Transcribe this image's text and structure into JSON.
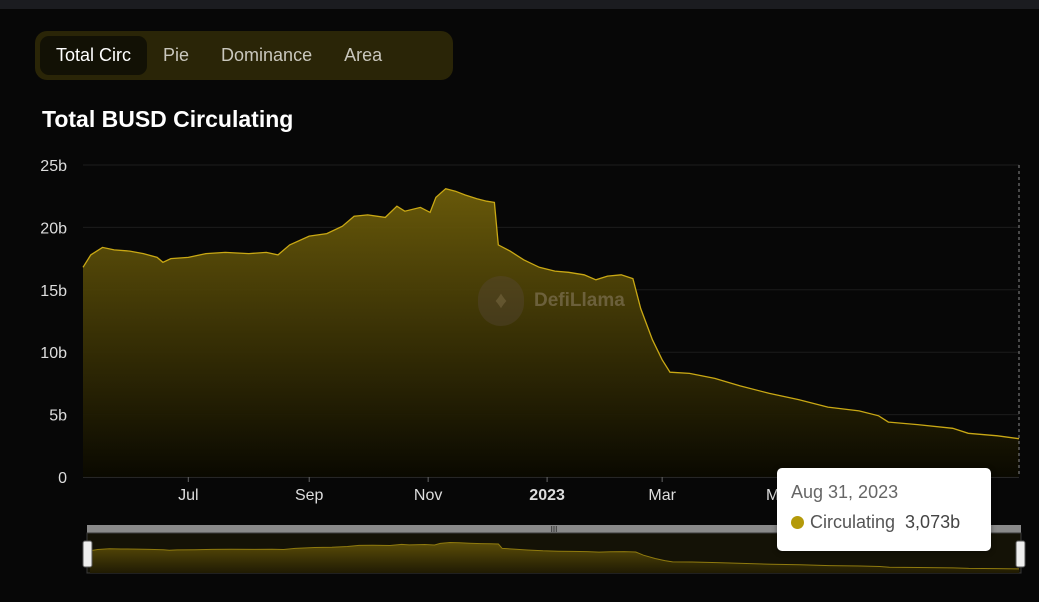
{
  "tabs": [
    {
      "label": "Total Circ",
      "active": true
    },
    {
      "label": "Pie",
      "active": false
    },
    {
      "label": "Dominance",
      "active": false
    },
    {
      "label": "Area",
      "active": false
    }
  ],
  "watermark": {
    "text": "DefiLlama"
  },
  "tooltip": {
    "date": "Aug 31, 2023",
    "series": "Circulating",
    "value": "3,073b"
  },
  "colors": {
    "line": "#c9a814",
    "fill_top": "#6d5d0a",
    "tooltip_dot": "#b49a0a"
  },
  "chart_data": {
    "type": "area",
    "title": "Total BUSD Circulating",
    "ylabel": "",
    "xlabel": "",
    "ylim": [
      0,
      25
    ],
    "yticks": [
      "0",
      "5b",
      "10b",
      "15b",
      "20b",
      "25b"
    ],
    "xticks": [
      {
        "label": "Jul",
        "date": "2022-07-01"
      },
      {
        "label": "Sep",
        "date": "2022-09-01"
      },
      {
        "label": "Nov",
        "date": "2022-11-01"
      },
      {
        "label": "2023",
        "date": "2023-01-01",
        "bold": true
      },
      {
        "label": "Mar",
        "date": "2023-03-01"
      },
      {
        "label": "May",
        "date": "2023-05-01"
      }
    ],
    "grid": true,
    "series": [
      {
        "name": "Circulating",
        "points": [
          [
            "2022-05-08",
            16.8
          ],
          [
            "2022-05-12",
            17.8
          ],
          [
            "2022-05-18",
            18.4
          ],
          [
            "2022-05-24",
            18.2
          ],
          [
            "2022-06-01",
            18.1
          ],
          [
            "2022-06-08",
            17.9
          ],
          [
            "2022-06-15",
            17.6
          ],
          [
            "2022-06-18",
            17.2
          ],
          [
            "2022-06-22",
            17.5
          ],
          [
            "2022-07-01",
            17.6
          ],
          [
            "2022-07-10",
            17.9
          ],
          [
            "2022-07-20",
            18.0
          ],
          [
            "2022-08-01",
            17.9
          ],
          [
            "2022-08-10",
            18.0
          ],
          [
            "2022-08-16",
            17.8
          ],
          [
            "2022-08-22",
            18.6
          ],
          [
            "2022-09-01",
            19.3
          ],
          [
            "2022-09-10",
            19.5
          ],
          [
            "2022-09-18",
            20.1
          ],
          [
            "2022-09-24",
            20.9
          ],
          [
            "2022-10-01",
            21.0
          ],
          [
            "2022-10-10",
            20.8
          ],
          [
            "2022-10-16",
            21.7
          ],
          [
            "2022-10-20",
            21.3
          ],
          [
            "2022-10-28",
            21.6
          ],
          [
            "2022-11-02",
            21.2
          ],
          [
            "2022-11-05",
            22.4
          ],
          [
            "2022-11-10",
            23.1
          ],
          [
            "2022-11-15",
            22.9
          ],
          [
            "2022-11-20",
            22.6
          ],
          [
            "2022-11-26",
            22.3
          ],
          [
            "2022-12-01",
            22.1
          ],
          [
            "2022-12-05",
            22.0
          ],
          [
            "2022-12-07",
            18.6
          ],
          [
            "2022-12-13",
            18.1
          ],
          [
            "2022-12-20",
            17.4
          ],
          [
            "2022-12-28",
            16.8
          ],
          [
            "2023-01-05",
            16.5
          ],
          [
            "2023-01-12",
            16.4
          ],
          [
            "2023-01-20",
            16.2
          ],
          [
            "2023-01-26",
            15.8
          ],
          [
            "2023-02-01",
            16.1
          ],
          [
            "2023-02-08",
            16.2
          ],
          [
            "2023-02-14",
            15.9
          ],
          [
            "2023-02-18",
            13.5
          ],
          [
            "2023-02-24",
            11.0
          ],
          [
            "2023-03-01",
            9.4
          ],
          [
            "2023-03-05",
            8.4
          ],
          [
            "2023-03-15",
            8.3
          ],
          [
            "2023-03-28",
            7.9
          ],
          [
            "2023-04-10",
            7.3
          ],
          [
            "2023-04-25",
            6.7
          ],
          [
            "2023-05-10",
            6.2
          ],
          [
            "2023-05-25",
            5.6
          ],
          [
            "2023-06-10",
            5.3
          ],
          [
            "2023-06-20",
            4.9
          ],
          [
            "2023-06-25",
            4.4
          ],
          [
            "2023-07-10",
            4.2
          ],
          [
            "2023-07-28",
            3.9
          ],
          [
            "2023-08-05",
            3.5
          ],
          [
            "2023-08-20",
            3.3
          ],
          [
            "2023-08-31",
            3.07
          ]
        ]
      }
    ]
  }
}
